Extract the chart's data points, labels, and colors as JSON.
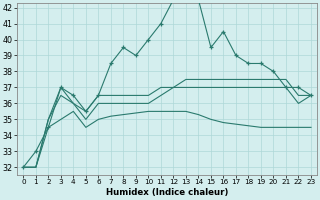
{
  "xlabel": "Humidex (Indice chaleur)",
  "hours": [
    0,
    1,
    2,
    3,
    4,
    5,
    6,
    7,
    8,
    9,
    10,
    11,
    12,
    13,
    14,
    15,
    16,
    17,
    18,
    19,
    20,
    21,
    22,
    23
  ],
  "line_top": [
    32,
    33,
    34.5,
    37,
    36.5,
    35.5,
    36.5,
    38.5,
    39.5,
    39,
    40,
    41,
    42.5,
    42.5,
    42.5,
    39.5,
    40.5,
    39,
    38.5,
    38.5,
    38,
    37,
    37,
    36.5
  ],
  "line_upper": [
    32,
    32,
    35,
    37,
    36,
    35.5,
    36.5,
    36.5,
    36.5,
    36.5,
    36.5,
    37,
    37,
    37.5,
    37.5,
    37.5,
    37.5,
    37.5,
    37.5,
    37.5,
    37.5,
    37.5,
    36.5,
    36.5
  ],
  "line_lower": [
    32,
    32,
    35,
    36.5,
    36,
    35,
    36,
    36,
    36,
    36,
    36,
    36.5,
    37,
    37,
    37,
    37,
    37,
    37,
    37,
    37,
    37,
    37,
    36,
    36.5
  ],
  "line_bot": [
    32,
    32,
    34.5,
    35,
    35.5,
    34.5,
    35,
    35.2,
    35.3,
    35.4,
    35.5,
    35.5,
    35.5,
    35.5,
    35.3,
    35.0,
    34.8,
    34.7,
    34.6,
    34.5,
    34.5,
    34.5,
    34.5,
    34.5
  ],
  "ylim_min": 32,
  "ylim_max": 42,
  "yticks": [
    32,
    33,
    34,
    35,
    36,
    37,
    38,
    39,
    40,
    41,
    42
  ],
  "line_color": "#2a7a6e",
  "bg_color": "#d4eeee",
  "grid_color": "#aed8d8"
}
